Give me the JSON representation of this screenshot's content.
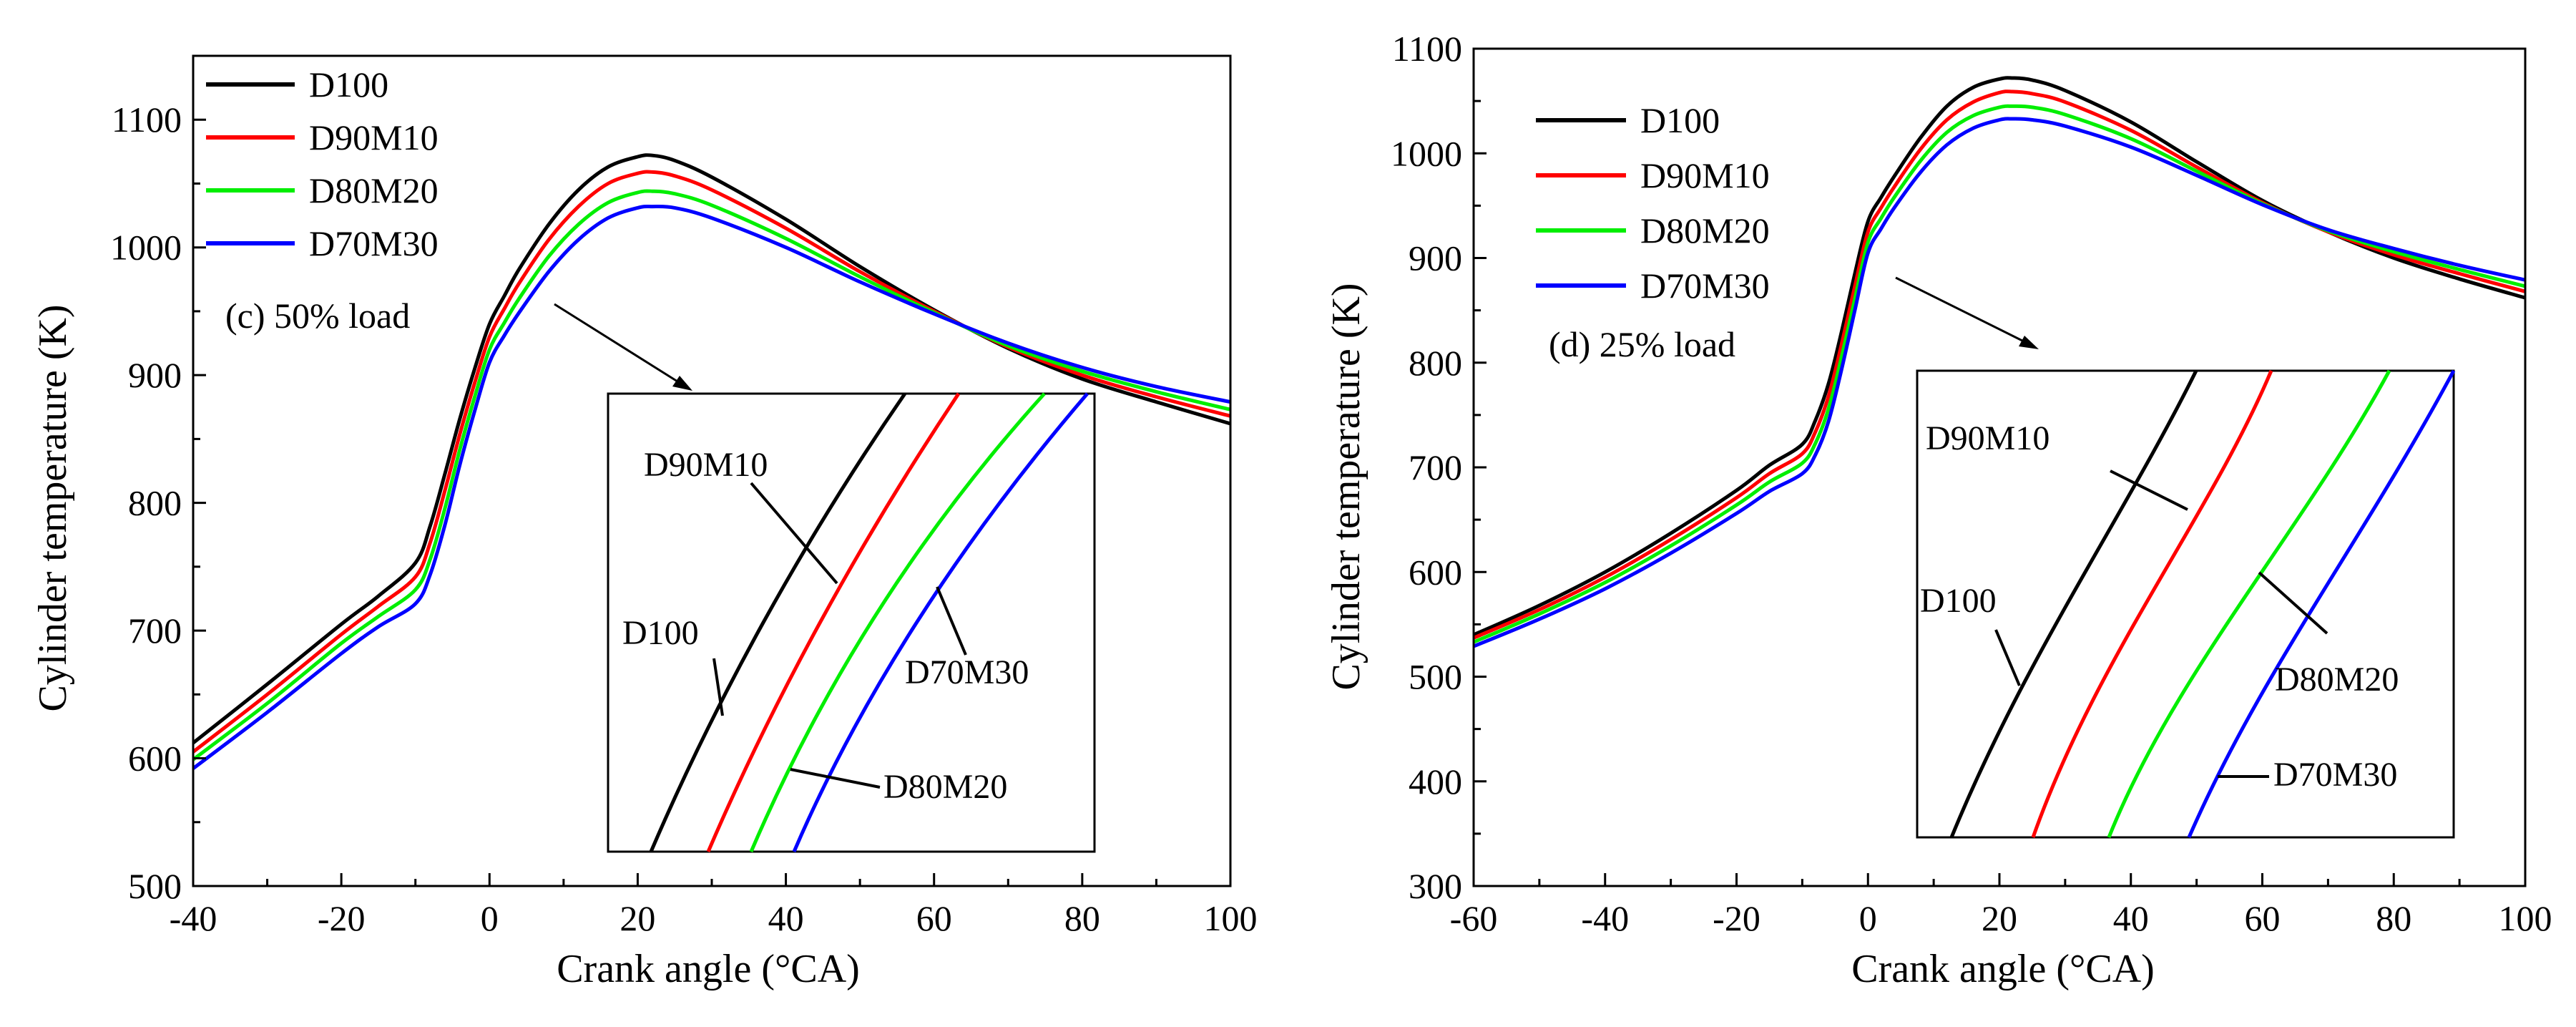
{
  "colors": {
    "D100": "#000000",
    "D90M10": "#ff0000",
    "D80M20": "#00ee00",
    "D70M30": "#0000ff",
    "axis": "#000000",
    "background": "#ffffff"
  },
  "chart_data": [
    {
      "type": "line",
      "title": "",
      "annotation": "(c) 50% load",
      "xlabel": "Crank angle (°CA)",
      "ylabel": "Cylinder temperature (K)",
      "xlim": [
        -40,
        100
      ],
      "ylim": [
        500,
        1150
      ],
      "xticks": [
        -40,
        -20,
        0,
        20,
        40,
        60,
        80,
        100
      ],
      "yticks": [
        500,
        600,
        700,
        800,
        900,
        1000,
        1100
      ],
      "legend": {
        "placement": "top-left",
        "entries": [
          "D100",
          "D90M10",
          "D80M20",
          "D70M30"
        ]
      },
      "series": [
        {
          "name": "D100",
          "color": "#000000",
          "x": [
            -40,
            -30,
            -20,
            -15,
            -10,
            -8,
            -6,
            -4,
            -2,
            0,
            2,
            4,
            8,
            12,
            16,
            20,
            22,
            25,
            30,
            40,
            50,
            60,
            70,
            80,
            90,
            100
          ],
          "y": [
            612,
            658,
            705,
            727,
            753,
            782,
            823,
            866,
            905,
            940,
            962,
            983,
            1018,
            1045,
            1063,
            1071,
            1072,
            1068,
            1055,
            1022,
            985,
            951,
            921,
            897,
            879,
            862
          ]
        },
        {
          "name": "D90M10",
          "color": "#ff0000",
          "x": [
            -40,
            -30,
            -20,
            -15,
            -10,
            -8,
            -6,
            -4,
            -2,
            0,
            2,
            4,
            8,
            12,
            16,
            20,
            22,
            25,
            30,
            40,
            50,
            60,
            70,
            80,
            90,
            100
          ],
          "y": [
            605,
            650,
            697,
            719,
            742,
            769,
            810,
            854,
            894,
            930,
            952,
            972,
            1006,
            1032,
            1050,
            1058,
            1059,
            1056,
            1045,
            1015,
            981,
            950,
            922,
            900,
            883,
            868
          ]
        },
        {
          "name": "D80M20",
          "color": "#00ee00",
          "x": [
            -40,
            -30,
            -20,
            -15,
            -10,
            -8,
            -6,
            -4,
            -2,
            0,
            2,
            4,
            8,
            12,
            16,
            20,
            22,
            25,
            30,
            40,
            50,
            60,
            70,
            80,
            90,
            100
          ],
          "y": [
            599,
            643,
            690,
            711,
            732,
            756,
            796,
            842,
            883,
            920,
            941,
            960,
            993,
            1018,
            1035,
            1043,
            1044,
            1042,
            1033,
            1007,
            977,
            949,
            923,
            903,
            887,
            873
          ]
        },
        {
          "name": "D70M30",
          "color": "#0000ff",
          "x": [
            -40,
            -30,
            -20,
            -15,
            -10,
            -8,
            -6,
            -4,
            -2,
            0,
            2,
            4,
            8,
            12,
            16,
            20,
            22,
            25,
            30,
            40,
            50,
            60,
            70,
            80,
            90,
            100
          ],
          "y": [
            592,
            636,
            682,
            703,
            721,
            744,
            783,
            830,
            872,
            910,
            931,
            949,
            981,
            1006,
            1023,
            1031,
            1032,
            1031,
            1023,
            1000,
            973,
            948,
            925,
            906,
            891,
            879
          ]
        }
      ],
      "inset": {
        "labels": [
          "D90M10",
          "D100",
          "D70M30",
          "D80M20"
        ]
      }
    },
    {
      "type": "line",
      "title": "",
      "annotation": "(d) 25% load",
      "xlabel": "Crank angle (°CA)",
      "ylabel": "Cylinder temperature (K)",
      "xlim": [
        -60,
        100
      ],
      "ylim": [
        300,
        1100
      ],
      "xticks": [
        -60,
        -40,
        -20,
        0,
        20,
        40,
        60,
        80,
        100
      ],
      "yticks": [
        300,
        400,
        500,
        600,
        700,
        800,
        900,
        1000,
        1100
      ],
      "legend": {
        "placement": "top-left",
        "entries": [
          "D100",
          "D90M10",
          "D80M20",
          "D70M30"
        ]
      },
      "series": [
        {
          "name": "D100",
          "color": "#000000",
          "x": [
            -60,
            -50,
            -40,
            -30,
            -20,
            -15,
            -10,
            -8,
            -6,
            -4,
            -2,
            0,
            2,
            4,
            8,
            12,
            16,
            20,
            22,
            25,
            30,
            40,
            50,
            60,
            70,
            80,
            90,
            100
          ],
          "y": [
            540,
            568,
            600,
            637,
            678,
            702,
            722,
            745,
            780,
            830,
            885,
            935,
            958,
            978,
            1015,
            1045,
            1063,
            1071,
            1072,
            1070,
            1060,
            1030,
            992,
            955,
            925,
            900,
            880,
            862
          ]
        },
        {
          "name": "D90M10",
          "color": "#ff0000",
          "x": [
            -60,
            -50,
            -40,
            -30,
            -20,
            -15,
            -10,
            -8,
            -6,
            -4,
            -2,
            0,
            2,
            4,
            8,
            12,
            16,
            20,
            22,
            25,
            30,
            40,
            50,
            60,
            70,
            80,
            90,
            100
          ],
          "y": [
            537,
            564,
            595,
            631,
            671,
            694,
            713,
            734,
            768,
            818,
            873,
            925,
            948,
            968,
            1004,
            1032,
            1049,
            1058,
            1059,
            1057,
            1049,
            1022,
            987,
            953,
            925,
            903,
            885,
            868
          ]
        },
        {
          "name": "D80M20",
          "color": "#00ee00",
          "x": [
            -60,
            -50,
            -40,
            -30,
            -20,
            -15,
            -10,
            -8,
            -6,
            -4,
            -2,
            0,
            2,
            4,
            8,
            12,
            16,
            20,
            22,
            25,
            30,
            40,
            50,
            60,
            70,
            80,
            90,
            100
          ],
          "y": [
            533,
            560,
            590,
            625,
            664,
            686,
            704,
            723,
            756,
            806,
            861,
            915,
            938,
            958,
            993,
            1020,
            1036,
            1044,
            1045,
            1044,
            1037,
            1014,
            983,
            952,
            926,
            906,
            889,
            873
          ]
        },
        {
          "name": "D70M30",
          "color": "#0000ff",
          "x": [
            -60,
            -50,
            -40,
            -30,
            -20,
            -15,
            -10,
            -8,
            -6,
            -4,
            -2,
            0,
            2,
            4,
            8,
            12,
            16,
            20,
            22,
            25,
            30,
            40,
            50,
            60,
            70,
            80,
            90,
            100
          ],
          "y": [
            529,
            555,
            584,
            618,
            656,
            677,
            694,
            712,
            744,
            794,
            850,
            905,
            928,
            948,
            982,
            1008,
            1024,
            1032,
            1033,
            1032,
            1026,
            1006,
            979,
            951,
            927,
            909,
            893,
            879
          ]
        }
      ],
      "inset": {
        "labels": [
          "D90M10",
          "D100",
          "D80M20",
          "D70M30"
        ]
      }
    }
  ]
}
